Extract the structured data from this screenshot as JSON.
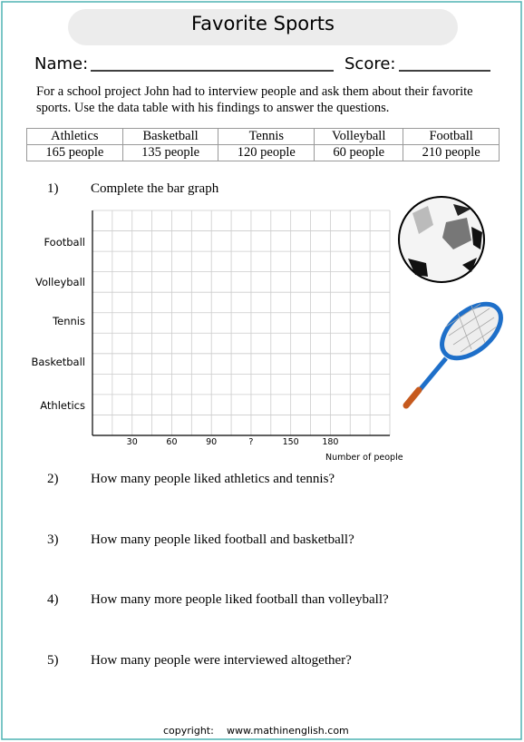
{
  "header": {
    "title": "Favorite Sports",
    "name_label": "Name:",
    "score_label": "Score:"
  },
  "intro": "For a school project John had to interview people and ask them about their favorite sports. Use the data table with his findings to answer the questions.",
  "table": {
    "header": [
      "Athletics",
      "Basketball",
      "Tennis",
      "Volleyball",
      "Football"
    ],
    "rows": [
      [
        "165 people",
        "135 people",
        "120 people",
        "60 people",
        "210 people"
      ]
    ]
  },
  "questions": [
    {
      "number": "1)",
      "text": "Complete the bar graph"
    },
    {
      "number": "2)",
      "text": "How many people liked athletics and tennis?"
    },
    {
      "number": "3)",
      "text": "How many people liked football and basketball?"
    },
    {
      "number": "4)",
      "text": "How many more people liked football than volleyball?"
    },
    {
      "number": "5)",
      "text": "How many people were interviewed altogether?"
    }
  ],
  "graph": {
    "y_labels": [
      "Football",
      "Volleyball",
      "Tennis",
      "Basketball",
      "Athletics"
    ],
    "x_labels": [
      "30",
      "60",
      "90",
      "?",
      "150",
      "180"
    ],
    "x_axis_label": "Number of people"
  },
  "footer": {
    "copyright": "copyright:",
    "url": "www.mathinenglish.com"
  }
}
